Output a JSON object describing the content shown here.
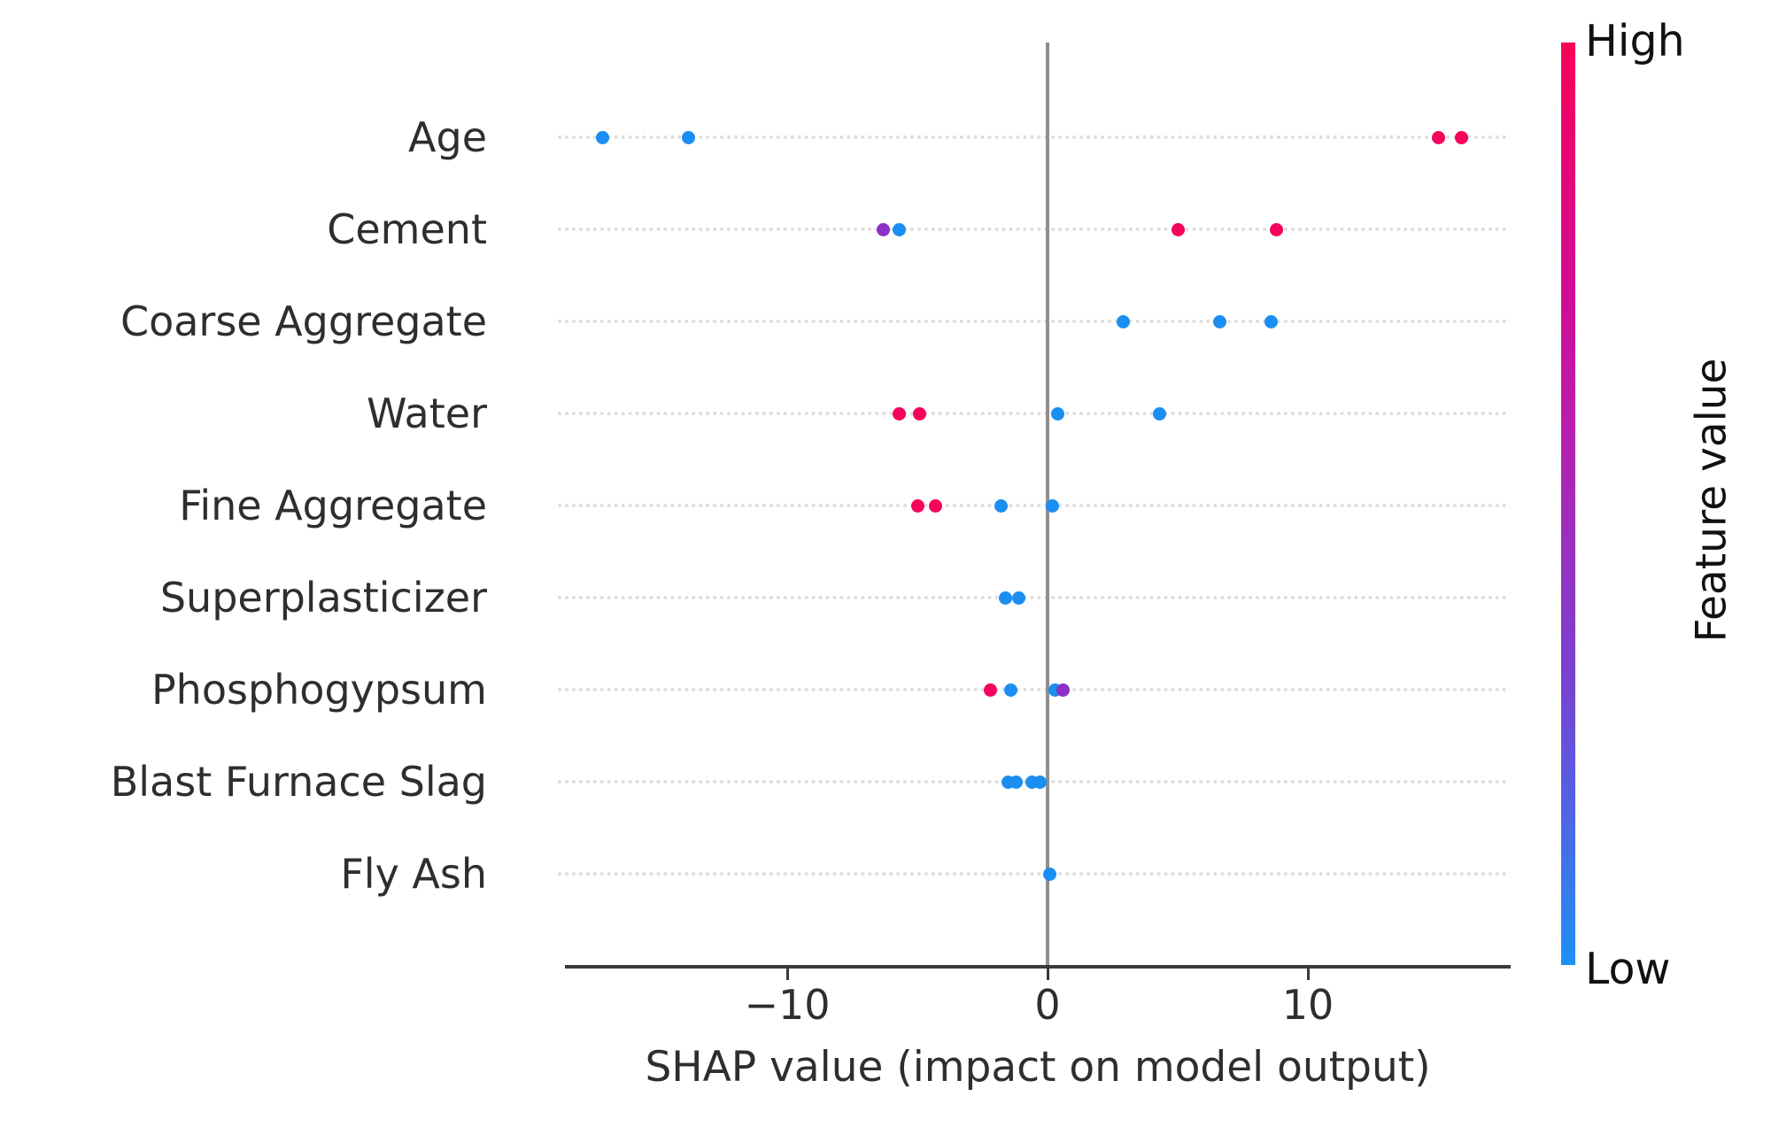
{
  "chart_data": {
    "type": "scatter",
    "subtype": "shap-summary-beeswarm",
    "title": "",
    "xlabel": "SHAP value (impact on model output)",
    "ylabel": "",
    "xlim": [
      -18.5,
      17.8
    ],
    "x_ticks": [
      {
        "value": -10,
        "label": "−10"
      },
      {
        "value": 0,
        "label": "0"
      },
      {
        "value": 10,
        "label": "10"
      }
    ],
    "grid": "dotted horizontal line per feature row",
    "zero_reference_line": true,
    "features": [
      {
        "name": "Age",
        "points": [
          {
            "shap": -17.1,
            "value": "low"
          },
          {
            "shap": -13.8,
            "value": "low"
          },
          {
            "shap": 15.0,
            "value": "high"
          },
          {
            "shap": 15.9,
            "value": "high"
          }
        ]
      },
      {
        "name": "Cement",
        "points": [
          {
            "shap": -6.3,
            "value": "mid"
          },
          {
            "shap": -5.7,
            "value": "low"
          },
          {
            "shap": 5.0,
            "value": "high"
          },
          {
            "shap": 8.8,
            "value": "high"
          }
        ]
      },
      {
        "name": "Coarse Aggregate",
        "points": [
          {
            "shap": 2.9,
            "value": "low"
          },
          {
            "shap": 6.6,
            "value": "low"
          },
          {
            "shap": 8.6,
            "value": "low"
          }
        ]
      },
      {
        "name": "Water",
        "points": [
          {
            "shap": -5.7,
            "value": "high"
          },
          {
            "shap": -4.9,
            "value": "high"
          },
          {
            "shap": 0.4,
            "value": "low"
          },
          {
            "shap": 4.3,
            "value": "low"
          }
        ]
      },
      {
        "name": "Fine Aggregate",
        "points": [
          {
            "shap": -5.0,
            "value": "high"
          },
          {
            "shap": -4.3,
            "value": "high"
          },
          {
            "shap": -1.8,
            "value": "low"
          },
          {
            "shap": 0.2,
            "value": "low"
          }
        ]
      },
      {
        "name": "Superplasticizer",
        "points": [
          {
            "shap": -1.6,
            "value": "low"
          },
          {
            "shap": -1.1,
            "value": "low"
          }
        ]
      },
      {
        "name": "Phosphogypsum",
        "points": [
          {
            "shap": -2.2,
            "value": "high"
          },
          {
            "shap": -1.4,
            "value": "low"
          },
          {
            "shap": 0.3,
            "value": "low"
          },
          {
            "shap": 0.6,
            "value": "mid"
          }
        ]
      },
      {
        "name": "Blast Furnace Slag",
        "points": [
          {
            "shap": -1.5,
            "value": "low"
          },
          {
            "shap": -1.2,
            "value": "low"
          },
          {
            "shap": -0.6,
            "value": "low"
          },
          {
            "shap": -0.3,
            "value": "low"
          }
        ]
      },
      {
        "name": "Fly Ash",
        "points": [
          {
            "shap": 0.1,
            "value": "low"
          }
        ]
      }
    ],
    "colorbar": {
      "label": "Feature value",
      "high_label": "High",
      "low_label": "Low",
      "position": "right"
    }
  },
  "colors": {
    "dot_high": "#f4045c",
    "dot_low": "#1b8ef2",
    "dot_mid": "#8d30c8",
    "zero_line": "#8f8f8f",
    "axis": "#3a3a3a",
    "gridline": "#dedede",
    "colorbar_top": "#f70357",
    "colorbar_mid": "#9632c1",
    "colorbar_bottom": "#1e90f5"
  }
}
